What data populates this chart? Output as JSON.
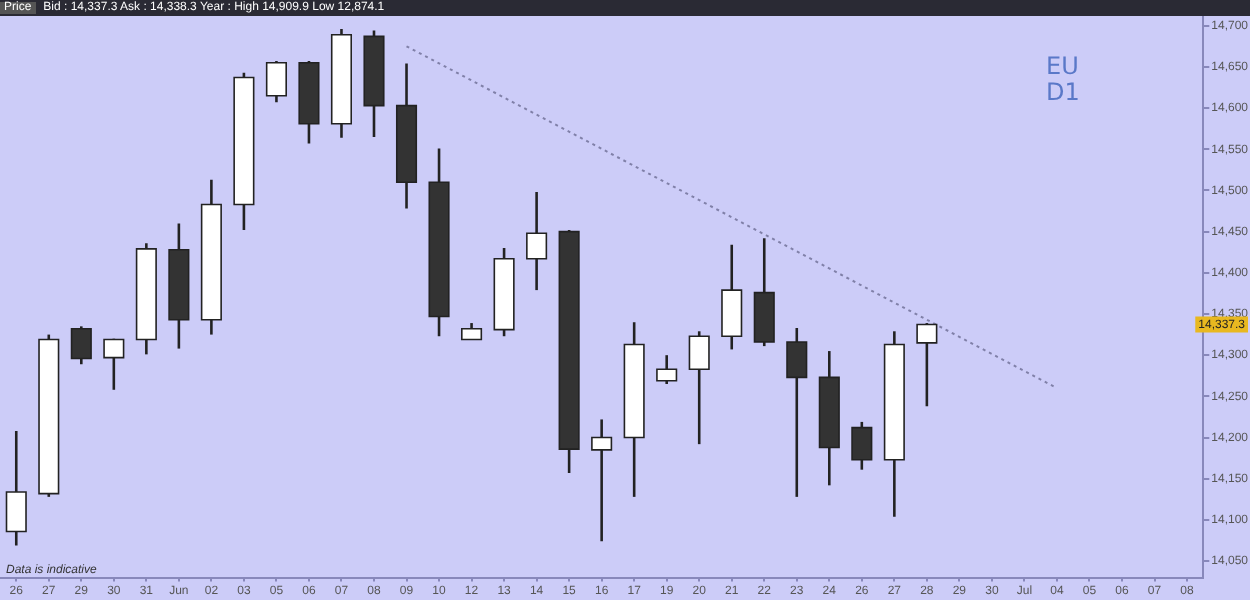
{
  "chart_data": {
    "type": "candlestick",
    "subtitle": "Bid : 14,337.3 Ask : 14,338.3  Year : High 14,909.9 Low 12,874.1",
    "categories": [
      "26",
      "27",
      "29",
      "30",
      "31",
      "Jun",
      "02",
      "03",
      "05",
      "06",
      "07",
      "08",
      "09",
      "10",
      "12",
      "13",
      "14",
      "15",
      "16",
      "17",
      "19",
      "20",
      "21",
      "22",
      "23",
      "24",
      "26",
      "27",
      "28",
      "29",
      "30",
      "Jul",
      "04",
      "05",
      "06",
      "07",
      "08"
    ],
    "ohlc": [
      [
        14086,
        14208,
        14069,
        14134
      ],
      [
        14132,
        14325,
        14128,
        14319
      ],
      [
        14332,
        14335,
        14289,
        14296
      ],
      [
        14297,
        14320,
        14258,
        14319
      ],
      [
        14319,
        14436,
        14301,
        14429
      ],
      [
        14428,
        14460,
        14308,
        14343
      ],
      [
        14343,
        14513,
        14325,
        14483
      ],
      [
        14483,
        14643,
        14452,
        14637
      ],
      [
        14615,
        14657,
        14607,
        14655
      ],
      [
        14655,
        14657,
        14557,
        14581
      ],
      [
        14581,
        14696,
        14564,
        14689
      ],
      [
        14687,
        14694,
        14565,
        14603
      ],
      [
        14603,
        14654,
        14478,
        14510
      ],
      [
        14510,
        14551,
        14323,
        14347
      ],
      [
        14319,
        14339,
        14319,
        14332
      ],
      [
        14331,
        14430,
        14323,
        14417
      ],
      [
        14417,
        14498,
        14379,
        14448
      ],
      [
        14450,
        14452,
        14157,
        14186
      ],
      [
        14185,
        14222,
        14074,
        14200
      ],
      [
        14200,
        14340,
        14128,
        14313
      ],
      [
        14269,
        14300,
        14265,
        14283
      ],
      [
        14283,
        14329,
        14192,
        14323
      ],
      [
        14323,
        14434,
        14307,
        14379
      ],
      [
        14376,
        14442,
        14311,
        14316
      ],
      [
        14316,
        14333,
        14128,
        14273
      ],
      [
        14273,
        14305,
        14142,
        14188
      ],
      [
        14212,
        14219,
        14161,
        14173
      ],
      [
        14173,
        14329,
        14104,
        14313
      ],
      [
        14315,
        14339,
        14238,
        14337.3
      ],
      null,
      null,
      null,
      null,
      null,
      null,
      null,
      null
    ],
    "colors": [
      "#ffffff",
      "#ffffff",
      "#333333",
      "#ffffff",
      "#ffffff",
      "#333333",
      "#ffffff",
      "#ffffff",
      "#ffffff",
      "#333333",
      "#ffffff",
      "#333333",
      "#333333",
      "#333333",
      "#ffffff",
      "#ffffff",
      "#ffffff",
      "#333333",
      "#ffffff",
      "#ffffff",
      "#ffffff",
      "#ffffff",
      "#ffffff",
      "#333333",
      "#333333",
      "#333333",
      "#333333",
      "#ffffff",
      "#ffffff",
      null,
      null,
      null,
      null,
      null,
      null,
      null,
      null
    ],
    "series": [
      {
        "type": "line",
        "x": [
          "09",
          "04"
        ],
        "values": [
          14675,
          14260
        ],
        "color": "#8080a8"
      }
    ],
    "line_style": "dotted",
    "marker": "none",
    "ylim": [
      14030,
      14720
    ],
    "yticks": [
      {
        "value": 14050,
        "label": "14,050"
      },
      {
        "value": 14100,
        "label": "14,100"
      },
      {
        "value": 14150,
        "label": "14,150"
      },
      {
        "value": 14200,
        "label": "14,200"
      },
      {
        "value": 14250,
        "label": "14,250"
      },
      {
        "value": 14300,
        "label": "14,300"
      },
      {
        "value": 14350,
        "label": "14,350"
      },
      {
        "value": 14400,
        "label": "14,400"
      },
      {
        "value": 14450,
        "label": "14,450"
      },
      {
        "value": 14500,
        "label": "14,500"
      },
      {
        "value": 14550,
        "label": "14,550"
      },
      {
        "value": 14600,
        "label": "14,600"
      },
      {
        "value": 14650,
        "label": "14,650"
      },
      {
        "value": 14700,
        "label": "14,700"
      }
    ],
    "annotations": [
      "Price",
      "EU D1",
      "Data is indicative",
      {
        "text": "14,337.3",
        "y": 14337.3
      }
    ],
    "grid": false,
    "legend": false
  }
}
